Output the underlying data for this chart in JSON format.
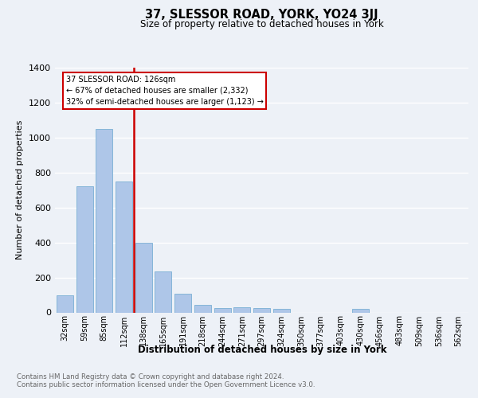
{
  "title": "37, SLESSOR ROAD, YORK, YO24 3JJ",
  "subtitle": "Size of property relative to detached houses in York",
  "xlabel": "Distribution of detached houses by size in York",
  "ylabel": "Number of detached properties",
  "categories": [
    "32sqm",
    "59sqm",
    "85sqm",
    "112sqm",
    "138sqm",
    "165sqm",
    "191sqm",
    "218sqm",
    "244sqm",
    "271sqm",
    "297sqm",
    "324sqm",
    "350sqm",
    "377sqm",
    "403sqm",
    "430sqm",
    "456sqm",
    "483sqm",
    "509sqm",
    "536sqm",
    "562sqm"
  ],
  "values": [
    100,
    720,
    1050,
    750,
    400,
    235,
    105,
    45,
    25,
    30,
    25,
    20,
    0,
    0,
    0,
    20,
    0,
    0,
    0,
    0,
    0
  ],
  "bar_color": "#aec6e8",
  "bar_edge_color": "#7aafd4",
  "vline_color": "#cc0000",
  "annotation_box_text": "37 SLESSOR ROAD: 126sqm\n← 67% of detached houses are smaller (2,332)\n32% of semi-detached houses are larger (1,123) →",
  "annotation_box_color": "#cc0000",
  "ylim": [
    0,
    1400
  ],
  "yticks": [
    0,
    200,
    400,
    600,
    800,
    1000,
    1200,
    1400
  ],
  "footer_text": "Contains HM Land Registry data © Crown copyright and database right 2024.\nContains public sector information licensed under the Open Government Licence v3.0.",
  "bg_color": "#edf1f7",
  "plot_bg_color": "#edf1f7",
  "grid_color": "#ffffff"
}
